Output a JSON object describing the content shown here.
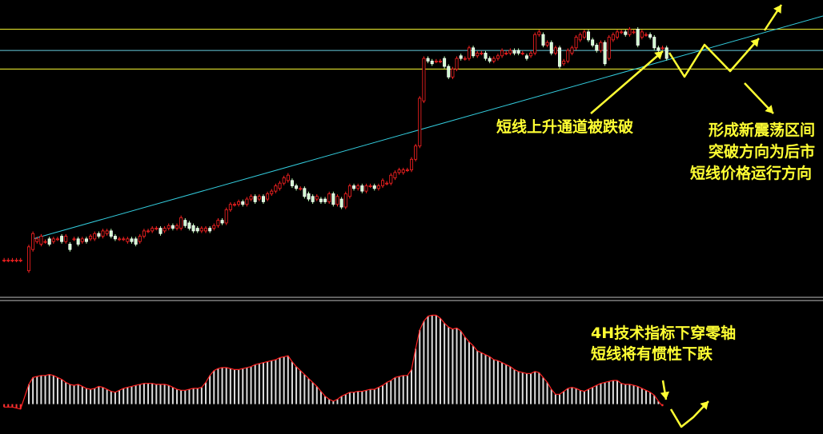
{
  "chart_data": {
    "type": "candlestick",
    "x_range": [
      0,
      200
    ],
    "upper_panel": {
      "price_range": [
        0,
        100
      ],
      "horizontal_levels": [
        {
          "value": 95,
          "color": "#ffff33"
        },
        {
          "value": 87,
          "color": "#66ccdd"
        },
        {
          "value": 80,
          "color": "#ffff33"
        }
      ],
      "trendline": {
        "x": [
          8,
          200
        ],
        "y": [
          16,
          100
        ],
        "color": "#33ccdd"
      },
      "candles": [
        [
          1,
          8,
          8
        ],
        [
          2,
          8,
          8
        ],
        [
          3,
          8,
          8
        ],
        [
          4,
          8,
          8
        ],
        [
          5,
          8,
          8
        ],
        [
          7,
          4,
          13
        ],
        [
          8,
          12,
          18
        ],
        [
          9,
          15,
          16
        ],
        [
          10,
          14,
          17
        ],
        [
          11,
          15,
          15
        ],
        [
          12,
          16,
          14
        ],
        [
          13,
          15,
          16
        ],
        [
          14,
          16,
          16
        ],
        [
          15,
          17,
          15
        ],
        [
          16,
          15,
          17
        ],
        [
          17,
          14,
          12
        ],
        [
          18,
          16,
          16
        ],
        [
          19,
          16,
          14
        ],
        [
          20,
          15,
          16
        ],
        [
          21,
          16,
          15
        ],
        [
          22,
          16,
          17
        ],
        [
          23,
          16,
          18
        ],
        [
          24,
          18,
          17
        ],
        [
          25,
          17,
          19
        ],
        [
          26,
          18,
          19
        ],
        [
          27,
          19,
          17
        ],
        [
          28,
          17,
          16
        ],
        [
          29,
          16,
          16
        ],
        [
          30,
          16,
          16
        ],
        [
          31,
          15,
          16
        ],
        [
          32,
          16,
          15
        ],
        [
          33,
          16,
          14
        ],
        [
          34,
          15,
          17
        ],
        [
          35,
          17,
          19
        ],
        [
          36,
          19,
          19
        ],
        [
          37,
          19,
          20
        ],
        [
          38,
          20,
          20
        ],
        [
          39,
          20,
          18
        ],
        [
          40,
          19,
          20
        ],
        [
          41,
          20,
          21
        ],
        [
          42,
          21,
          20
        ],
        [
          43,
          20,
          21
        ],
        [
          44,
          20,
          24
        ],
        [
          45,
          23,
          21
        ],
        [
          46,
          22,
          20
        ],
        [
          47,
          21,
          19
        ],
        [
          48,
          20,
          19
        ],
        [
          49,
          19,
          20
        ],
        [
          50,
          19,
          20
        ],
        [
          51,
          20,
          19
        ],
        [
          52,
          20,
          21
        ],
        [
          53,
          21,
          23
        ],
        [
          54,
          23,
          22
        ],
        [
          55,
          22,
          27
        ],
        [
          56,
          27,
          29
        ],
        [
          57,
          29,
          29
        ],
        [
          58,
          29,
          30
        ],
        [
          59,
          30,
          29
        ],
        [
          60,
          29,
          31
        ],
        [
          61,
          31,
          32
        ],
        [
          62,
          32,
          30
        ],
        [
          63,
          31,
          32
        ],
        [
          64,
          32,
          30
        ],
        [
          65,
          31,
          33
        ],
        [
          66,
          33,
          34
        ],
        [
          67,
          34,
          36
        ],
        [
          68,
          35,
          37
        ],
        [
          69,
          37,
          39
        ],
        [
          70,
          38,
          40
        ],
        [
          71,
          38,
          36
        ],
        [
          72,
          36,
          35
        ],
        [
          73,
          35,
          35
        ],
        [
          74,
          35,
          32
        ],
        [
          75,
          33,
          31
        ],
        [
          76,
          32,
          30
        ],
        [
          77,
          31,
          32
        ],
        [
          78,
          31,
          30
        ],
        [
          79,
          31,
          30
        ],
        [
          80,
          30,
          33
        ],
        [
          81,
          33,
          29
        ],
        [
          82,
          29,
          32
        ],
        [
          83,
          31,
          28
        ],
        [
          84,
          28,
          33
        ],
        [
          85,
          32,
          36
        ],
        [
          86,
          36,
          35
        ],
        [
          87,
          35,
          36
        ],
        [
          88,
          36,
          34
        ],
        [
          89,
          34,
          36
        ],
        [
          90,
          36,
          36
        ],
        [
          91,
          36,
          35
        ],
        [
          92,
          35,
          36
        ],
        [
          93,
          36,
          38
        ],
        [
          94,
          37,
          37
        ],
        [
          95,
          37,
          40
        ],
        [
          96,
          39,
          41
        ],
        [
          97,
          41,
          42
        ],
        [
          98,
          41,
          42
        ],
        [
          99,
          42,
          42
        ],
        [
          100,
          42,
          46
        ],
        [
          101,
          46,
          51
        ],
        [
          102,
          51,
          69
        ],
        [
          103,
          68,
          84
        ],
        [
          104,
          84,
          83
        ],
        [
          105,
          83,
          82
        ],
        [
          106,
          83,
          83
        ],
        [
          107,
          83,
          83
        ],
        [
          108,
          84,
          81
        ],
        [
          109,
          81,
          77
        ],
        [
          110,
          77,
          80
        ],
        [
          111,
          80,
          84
        ],
        [
          112,
          85,
          84
        ],
        [
          113,
          84,
          84
        ],
        [
          114,
          84,
          88
        ],
        [
          115,
          88,
          85
        ],
        [
          116,
          85,
          86
        ],
        [
          117,
          86,
          86
        ],
        [
          118,
          86,
          84
        ],
        [
          119,
          84,
          83
        ],
        [
          120,
          83,
          84
        ],
        [
          121,
          84,
          85
        ],
        [
          122,
          85,
          87
        ],
        [
          123,
          86,
          86
        ],
        [
          124,
          86,
          87
        ],
        [
          125,
          87,
          86
        ],
        [
          126,
          87,
          86
        ],
        [
          127,
          86,
          86
        ],
        [
          128,
          85,
          84
        ],
        [
          129,
          85,
          86
        ],
        [
          130,
          86,
          93
        ],
        [
          131,
          93,
          94
        ],
        [
          132,
          93,
          89
        ],
        [
          133,
          89,
          90
        ],
        [
          134,
          90,
          86
        ],
        [
          135,
          86,
          88
        ],
        [
          136,
          88,
          81
        ],
        [
          137,
          82,
          83
        ],
        [
          138,
          83,
          87
        ],
        [
          139,
          86,
          88
        ],
        [
          140,
          88,
          92
        ],
        [
          141,
          91,
          93
        ],
        [
          142,
          92,
          94
        ],
        [
          143,
          94,
          91
        ],
        [
          144,
          91,
          89
        ],
        [
          145,
          89,
          87
        ],
        [
          146,
          87,
          90
        ],
        [
          147,
          90,
          82
        ],
        [
          148,
          84,
          92
        ],
        [
          149,
          91,
          93
        ],
        [
          150,
          92,
          94
        ],
        [
          151,
          94,
          94
        ],
        [
          152,
          94,
          93
        ],
        [
          153,
          93,
          95
        ],
        [
          154,
          94,
          94
        ],
        [
          155,
          95,
          89
        ],
        [
          156,
          92,
          94
        ],
        [
          157,
          93,
          93
        ],
        [
          158,
          93,
          92
        ],
        [
          159,
          92,
          88
        ],
        [
          160,
          88,
          87
        ],
        [
          161,
          88,
          88
        ],
        [
          162,
          88,
          84
        ]
      ]
    },
    "lower_panel": {
      "range": [
        -10,
        100
      ],
      "histogram": [
        [
          1,
          -3
        ],
        [
          2,
          -3
        ],
        [
          3,
          -3
        ],
        [
          4,
          -4
        ],
        [
          5,
          -5
        ],
        [
          7,
          20
        ],
        [
          8,
          27
        ],
        [
          9,
          28
        ],
        [
          10,
          29
        ],
        [
          11,
          29
        ],
        [
          12,
          30
        ],
        [
          13,
          29
        ],
        [
          14,
          27
        ],
        [
          15,
          25
        ],
        [
          16,
          22
        ],
        [
          17,
          20
        ],
        [
          18,
          19
        ],
        [
          19,
          20
        ],
        [
          20,
          18
        ],
        [
          21,
          16
        ],
        [
          22,
          15
        ],
        [
          23,
          16
        ],
        [
          24,
          18
        ],
        [
          25,
          17
        ],
        [
          26,
          15
        ],
        [
          27,
          13
        ],
        [
          28,
          12
        ],
        [
          29,
          14
        ],
        [
          30,
          16
        ],
        [
          31,
          17
        ],
        [
          32,
          18
        ],
        [
          33,
          19
        ],
        [
          34,
          20
        ],
        [
          35,
          21
        ],
        [
          36,
          21
        ],
        [
          37,
          21
        ],
        [
          38,
          20
        ],
        [
          39,
          20
        ],
        [
          40,
          20
        ],
        [
          41,
          19
        ],
        [
          42,
          17
        ],
        [
          43,
          15
        ],
        [
          44,
          14
        ],
        [
          45,
          14
        ],
        [
          46,
          15
        ],
        [
          47,
          16
        ],
        [
          48,
          16
        ],
        [
          49,
          17
        ],
        [
          50,
          22
        ],
        [
          51,
          29
        ],
        [
          52,
          34
        ],
        [
          53,
          36
        ],
        [
          54,
          37
        ],
        [
          55,
          37
        ],
        [
          56,
          36
        ],
        [
          57,
          35
        ],
        [
          58,
          35
        ],
        [
          59,
          36
        ],
        [
          60,
          37
        ],
        [
          61,
          38
        ],
        [
          62,
          40
        ],
        [
          63,
          41
        ],
        [
          64,
          42
        ],
        [
          65,
          43
        ],
        [
          66,
          44
        ],
        [
          67,
          45
        ],
        [
          68,
          47
        ],
        [
          69,
          48
        ],
        [
          70,
          49
        ],
        [
          71,
          43
        ],
        [
          72,
          38
        ],
        [
          73,
          34
        ],
        [
          74,
          30
        ],
        [
          75,
          26
        ],
        [
          76,
          22
        ],
        [
          77,
          18
        ],
        [
          78,
          13
        ],
        [
          79,
          8
        ],
        [
          80,
          5
        ],
        [
          81,
          3
        ],
        [
          82,
          5
        ],
        [
          83,
          8
        ],
        [
          84,
          10
        ],
        [
          85,
          12
        ],
        [
          86,
          12
        ],
        [
          87,
          13
        ],
        [
          88,
          13
        ],
        [
          89,
          14
        ],
        [
          90,
          15
        ],
        [
          91,
          15
        ],
        [
          92,
          17
        ],
        [
          93,
          19
        ],
        [
          94,
          22
        ],
        [
          95,
          24
        ],
        [
          96,
          27
        ],
        [
          97,
          28
        ],
        [
          98,
          29
        ],
        [
          99,
          29
        ],
        [
          100,
          35
        ],
        [
          101,
          56
        ],
        [
          102,
          75
        ],
        [
          103,
          84
        ],
        [
          104,
          89
        ],
        [
          105,
          90
        ],
        [
          106,
          90
        ],
        [
          107,
          87
        ],
        [
          108,
          82
        ],
        [
          109,
          78
        ],
        [
          110,
          76
        ],
        [
          111,
          77
        ],
        [
          112,
          74
        ],
        [
          113,
          68
        ],
        [
          114,
          63
        ],
        [
          115,
          59
        ],
        [
          116,
          54
        ],
        [
          117,
          52
        ],
        [
          118,
          50
        ],
        [
          119,
          48
        ],
        [
          120,
          45
        ],
        [
          121,
          44
        ],
        [
          122,
          42
        ],
        [
          123,
          40
        ],
        [
          124,
          38
        ],
        [
          125,
          35
        ],
        [
          126,
          33
        ],
        [
          127,
          32
        ],
        [
          128,
          31
        ],
        [
          129,
          31
        ],
        [
          130,
          33
        ],
        [
          131,
          32
        ],
        [
          132,
          27
        ],
        [
          133,
          22
        ],
        [
          134,
          15
        ],
        [
          135,
          10
        ],
        [
          136,
          10
        ],
        [
          137,
          13
        ],
        [
          138,
          16
        ],
        [
          139,
          17
        ],
        [
          140,
          16
        ],
        [
          141,
          14
        ],
        [
          142,
          13
        ],
        [
          143,
          15
        ],
        [
          144,
          17
        ],
        [
          145,
          19
        ],
        [
          146,
          21
        ],
        [
          147,
          22
        ],
        [
          148,
          23
        ],
        [
          149,
          24
        ],
        [
          150,
          24
        ],
        [
          151,
          21
        ],
        [
          152,
          20
        ],
        [
          153,
          20
        ],
        [
          154,
          19
        ],
        [
          155,
          18
        ],
        [
          156,
          16
        ],
        [
          157,
          14
        ],
        [
          158,
          12
        ],
        [
          159,
          9
        ],
        [
          160,
          3
        ],
        [
          161,
          -2
        ]
      ]
    },
    "annotations": {
      "breakdown": "短线上升通道被跌破",
      "range_line1": "形成新震荡区间",
      "range_line2": "突破方向为后市",
      "range_line3": "短线价格运行方向",
      "indicator_line1": "4H技术指标下穿零轴",
      "indicator_line2": "短线将有惯性下跌"
    }
  }
}
